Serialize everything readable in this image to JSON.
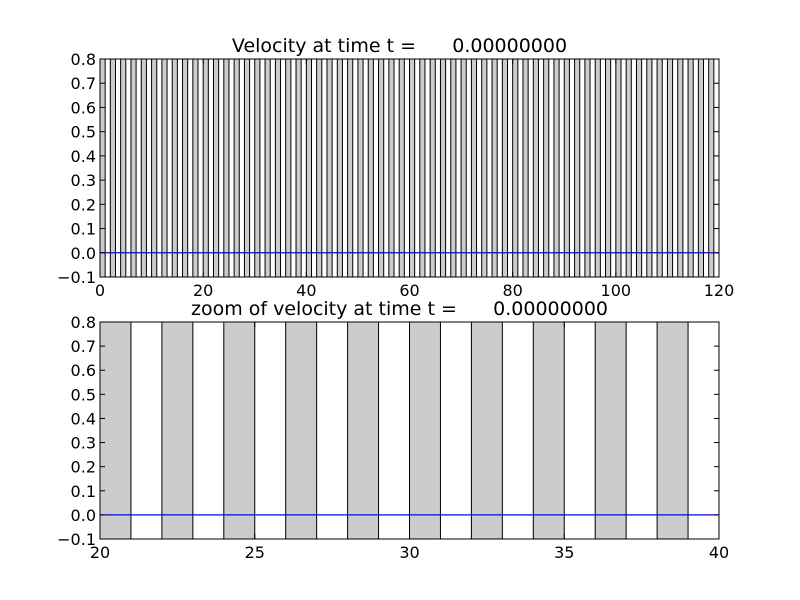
{
  "colors": {
    "background": "#ffffff",
    "band_fill": "#cccccc",
    "frame": "#000000",
    "velocity_line": "#0000ff"
  },
  "chart_data": [
    {
      "type": "line",
      "title": "Velocity at time t =      0.00000000",
      "xlabel": "",
      "ylabel": "",
      "xlim": [
        0,
        120
      ],
      "ylim": [
        -0.1,
        0.8
      ],
      "x_ticks": [
        0,
        20,
        40,
        60,
        80,
        100,
        120
      ],
      "x_tick_labels": [
        "0",
        "20",
        "40",
        "60",
        "80",
        "100",
        "120"
      ],
      "y_ticks": [
        -0.1,
        0.0,
        0.1,
        0.2,
        0.3,
        0.4,
        0.5,
        0.6,
        0.7,
        0.8
      ],
      "y_tick_labels": [
        "−0.1",
        "0.0",
        "0.1",
        "0.2",
        "0.3",
        "0.4",
        "0.5",
        "0.6",
        "0.7",
        "0.8"
      ],
      "grid": false,
      "shaded_bands": {
        "start": 0,
        "width": 1,
        "period": 2,
        "end": 120
      },
      "series": [
        {
          "x": [
            0,
            120
          ],
          "y": [
            0,
            0
          ]
        }
      ]
    },
    {
      "type": "line",
      "title": "zoom of velocity at time t =      0.00000000",
      "xlabel": "",
      "ylabel": "",
      "xlim": [
        20,
        40
      ],
      "ylim": [
        -0.1,
        0.8
      ],
      "x_ticks": [
        20,
        25,
        30,
        35,
        40
      ],
      "x_tick_labels": [
        "20",
        "25",
        "30",
        "35",
        "40"
      ],
      "y_ticks": [
        -0.1,
        0.0,
        0.1,
        0.2,
        0.3,
        0.4,
        0.5,
        0.6,
        0.7,
        0.8
      ],
      "y_tick_labels": [
        "−0.1",
        "0.0",
        "0.1",
        "0.2",
        "0.3",
        "0.4",
        "0.5",
        "0.6",
        "0.7",
        "0.8"
      ],
      "grid": false,
      "shaded_bands": {
        "start": 20,
        "width": 1,
        "period": 2,
        "end": 40
      },
      "series": [
        {
          "x": [
            20,
            40
          ],
          "y": [
            0,
            0
          ]
        }
      ]
    }
  ]
}
